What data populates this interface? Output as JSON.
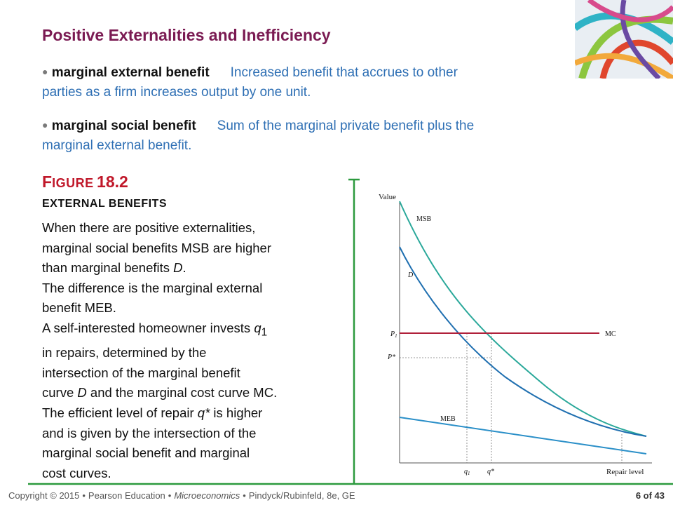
{
  "slide": {
    "title": "Positive Externalities and Inefficiency"
  },
  "definitions": [
    {
      "bullet": "●",
      "term": "marginal external benefit",
      "def_line1": "Increased benefit that accrues to other",
      "def_line2": "parties as a firm increases output by one unit."
    },
    {
      "bullet": "●",
      "term": "marginal social benefit",
      "def_line1": "Sum of the marginal private benefit plus the",
      "def_line2": "marginal external benefit."
    }
  ],
  "figure": {
    "label_first": "F",
    "label_rest": "IGURE",
    "label_num": "18.2",
    "subtitle": "EXTERNAL BENEFITS",
    "paragraphs": {
      "p1a": "When there are positive externalities,",
      "p1b": "marginal social benefits MSB are higher",
      "p1c": "than marginal benefits ",
      "p1d": "D",
      "p1e": ".",
      "p2a": "The difference is the marginal external",
      "p2b": "benefit MEB.",
      "p3a": "A self-interested homeowner invests ",
      "p3b": "q",
      "p3c": "1",
      "p3d": "in repairs, determined by the",
      "p3e": "intersection of the marginal benefit",
      "p3f": "curve ",
      "p3g": "D",
      "p3h": " and the marginal cost curve MC.",
      "p4a": "The efficient level of repair ",
      "p4b": "q*",
      "p4c": " is higher",
      "p4d": "and is given by the intersection of the",
      "p4e": "marginal social benefit and marginal",
      "p4f": "cost curves."
    }
  },
  "chart_data": {
    "type": "line",
    "ylabel": "Value",
    "xlabel": "Repair level",
    "series": [
      {
        "name": "MSB",
        "color": "#2aa89a"
      },
      {
        "name": "D",
        "color": "#1f6fb0"
      },
      {
        "name": "MC",
        "color": "#b0203a"
      },
      {
        "name": "MEB",
        "color": "#2a8fc8"
      }
    ],
    "y_ticks": [
      "P1",
      "P*"
    ],
    "x_ticks": [
      "q1",
      "q*"
    ]
  },
  "footer": {
    "copyright": "Copyright © 2015",
    "publisher": "Pearson Education",
    "book": "Microeconomics",
    "authors": "Pindyck/Rubinfeld, 8e, GE",
    "bullet": "•",
    "page": "6 of 43"
  },
  "colors": {
    "title": "#7a1a52",
    "definition": "#2e6fb4",
    "figure_label": "#c0182a",
    "frame": "#2c9a3e"
  }
}
